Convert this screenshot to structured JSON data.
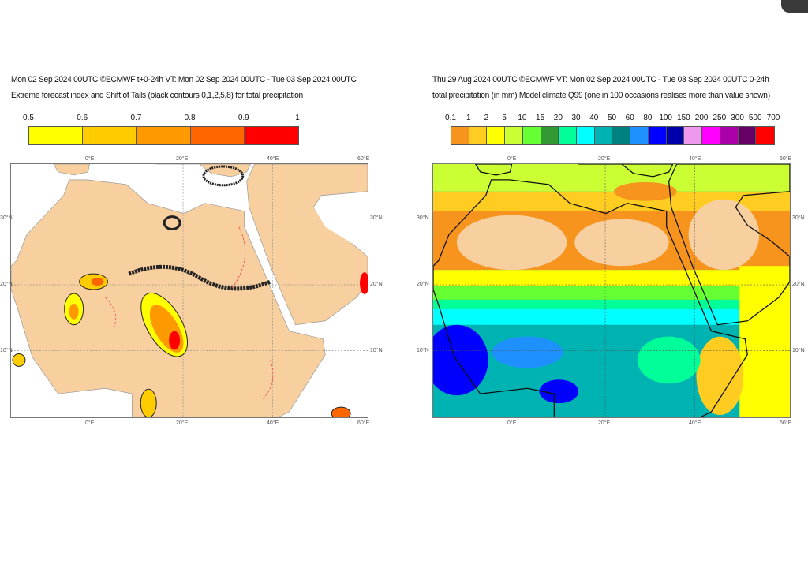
{
  "left_panel": {
    "title_line1": "Mon 02 Sep 2024 00UTC ©ECMWF t+0-24h  VT: Mon 02 Sep 2024 00UTC - Tue 03 Sep 2024 00UTC",
    "title_line2": "Extreme forecast index and Shift of Tails (black contours 0,1,2,5,8) for total precipitation",
    "legend_ticks": [
      "0.5",
      "0.6",
      "0.7",
      "0.8",
      "0.9",
      "1"
    ],
    "legend_colors": [
      "#ffff00",
      "#ffcc00",
      "#ff9900",
      "#ff6600",
      "#ff0000"
    ]
  },
  "right_panel": {
    "title_line1": "Thu 29 Aug 2024 00UTC ©ECMWF VT: Mon 02 Sep 2024 00UTC - Tue 03 Sep 2024 00UTC   0-24h",
    "title_line2": "total precipitation (in mm)  Model climate Q99 (one in 100 occasions realises more than value shown)",
    "legend_ticks": [
      "0.1",
      "1",
      "2",
      "5",
      "10",
      "15",
      "20",
      "30",
      "40",
      "50",
      "60",
      "80",
      "100",
      "150",
      "200",
      "250",
      "300",
      "500",
      "700"
    ],
    "legend_colors": [
      "#f7941d",
      "#ffcc22",
      "#ffff00",
      "#ccff33",
      "#66ff33",
      "#339933",
      "#00ff99",
      "#00ffff",
      "#00b3b3",
      "#008080",
      "#1e90ff",
      "#0000ff",
      "#0000aa",
      "#ee99ee",
      "#ff00ff",
      "#aa00aa",
      "#660066",
      "#ff0000"
    ]
  },
  "axes": {
    "lon_labels": [
      "0°E",
      "20°E",
      "40°E",
      "60°E"
    ],
    "lat_labels": [
      "30°N",
      "20°N",
      "10°N"
    ]
  },
  "chart_data": [
    {
      "type": "heatmap",
      "title": "Extreme forecast index and Shift of Tails for total precipitation",
      "colorbar": [
        0.5,
        0.6,
        0.7,
        0.8,
        0.9,
        1
      ],
      "xlim": [
        -18,
        61
      ],
      "ylim": [
        0,
        38
      ]
    },
    {
      "type": "heatmap",
      "title": "total precipitation (in mm) Model climate Q99",
      "colorbar": [
        0.1,
        1,
        2,
        5,
        10,
        15,
        20,
        30,
        40,
        50,
        60,
        80,
        100,
        150,
        200,
        250,
        300,
        500,
        700
      ],
      "xlim": [
        -18,
        61
      ],
      "ylim": [
        0,
        38
      ]
    }
  ]
}
